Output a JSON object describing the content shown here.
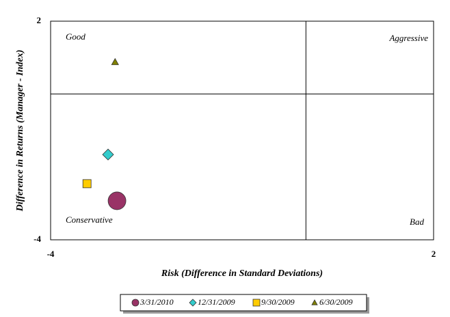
{
  "chart_data": {
    "type": "scatter",
    "xlabel": "Risk (Difference in Standard Deviations)",
    "ylabel": "Difference in Returns (Manager - Index)",
    "xlim": [
      -4,
      2
    ],
    "ylim": [
      -4,
      2
    ],
    "xticks": [
      -4,
      2
    ],
    "yticks": [
      -4,
      2
    ],
    "annotations": [
      {
        "text": "Good",
        "corner": "top-left"
      },
      {
        "text": "Aggressive",
        "corner": "top-right"
      },
      {
        "text": "Conservative",
        "corner": "bottom-left"
      },
      {
        "text": "Bad",
        "corner": "bottom-right"
      }
    ],
    "series": [
      {
        "name": "3/31/2010",
        "color": "#993366",
        "marker": "circle",
        "x": [
          -2.96
        ],
        "values": [
          -2.93
        ]
      },
      {
        "name": "12/31/2009",
        "color": "#33cccc",
        "marker": "diamond",
        "x": [
          -3.1
        ],
        "values": [
          -1.66
        ]
      },
      {
        "name": "9/30/2009",
        "color": "#ffcc00",
        "marker": "square",
        "x": [
          -3.43
        ],
        "values": [
          -2.46
        ]
      },
      {
        "name": "6/30/2009",
        "color": "#808000",
        "marker": "triangle",
        "x": [
          -2.99
        ],
        "values": [
          0.88
        ]
      }
    ]
  }
}
